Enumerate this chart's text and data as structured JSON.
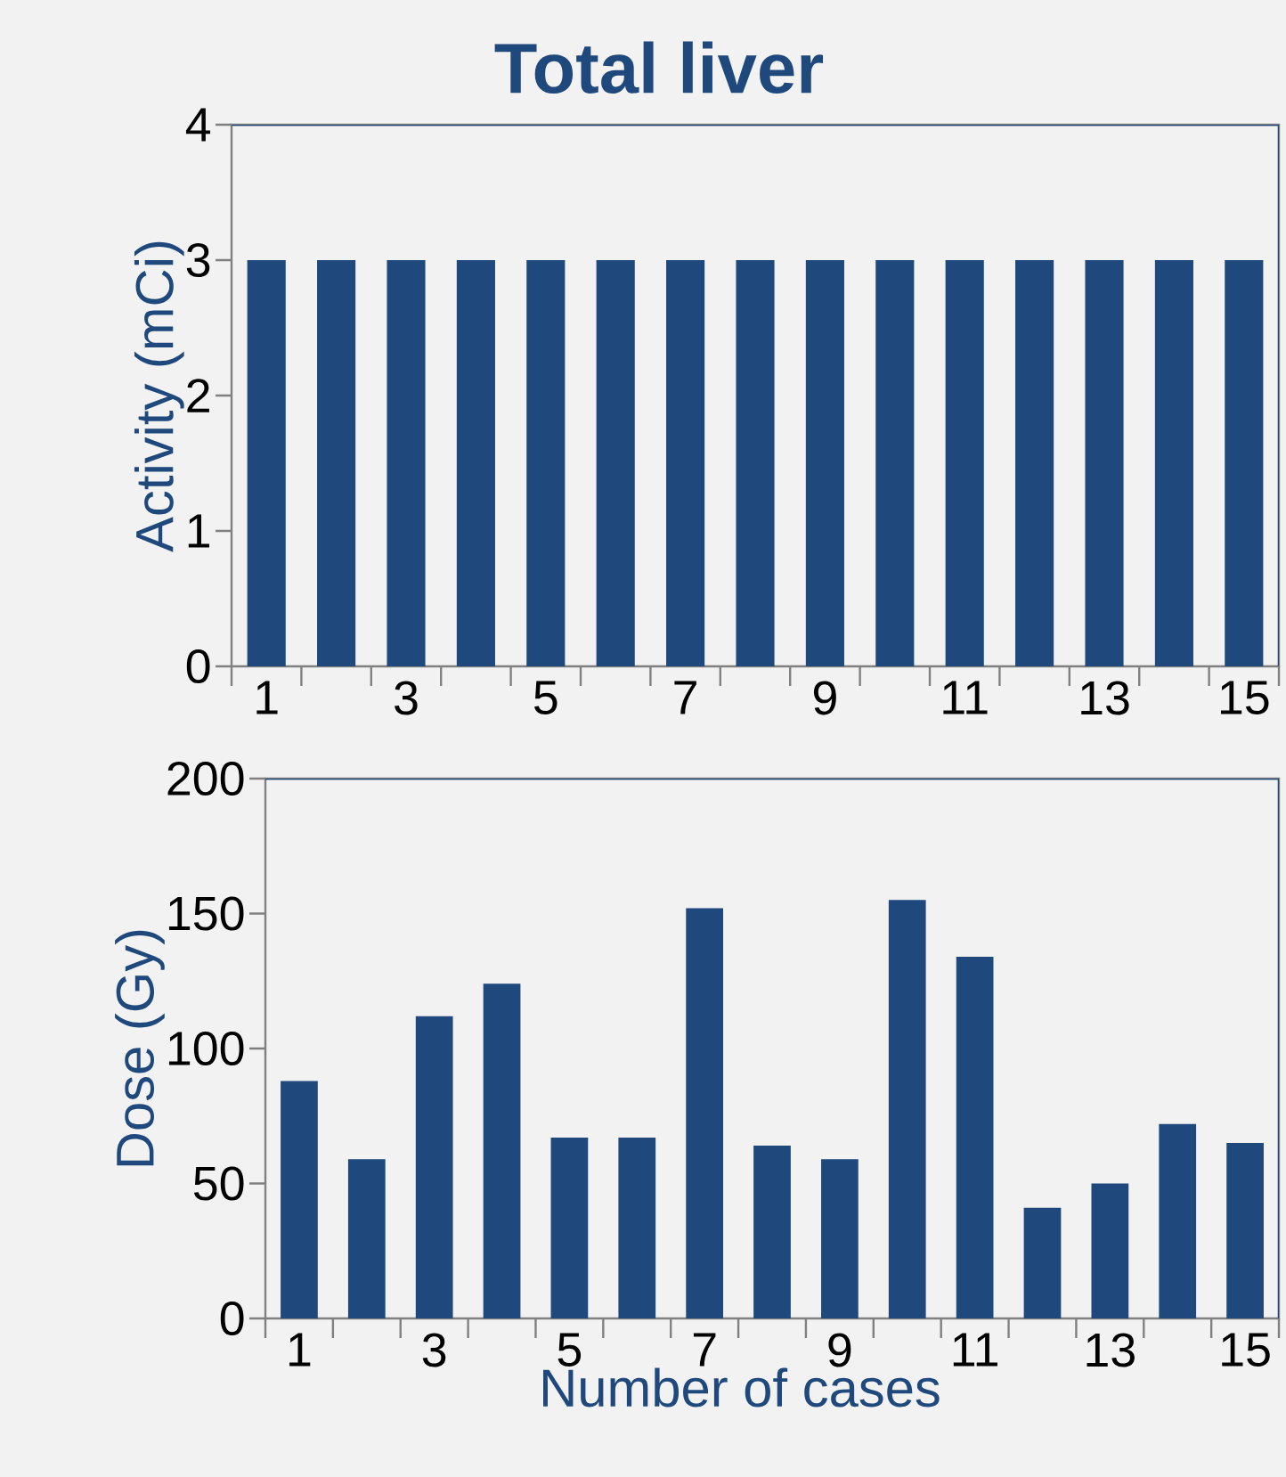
{
  "chart_data": [
    {
      "type": "bar",
      "title": "Total liver",
      "ylabel": "Activity (mCi)",
      "categories": [
        "1",
        null,
        "3",
        null,
        "5",
        null,
        "7",
        null,
        "9",
        null,
        "11",
        null,
        "13",
        null,
        "15"
      ],
      "values": [
        3,
        3,
        3,
        3,
        3,
        3,
        3,
        3,
        3,
        3,
        3,
        3,
        3,
        3,
        3
      ],
      "color": "#1f497d",
      "ylim": [
        0,
        4
      ],
      "yticks": [
        0,
        1,
        2,
        3,
        4
      ]
    },
    {
      "type": "bar",
      "xlabel": "Number of cases",
      "ylabel": "Dose (Gy)",
      "categories": [
        "1",
        null,
        "3",
        null,
        "5",
        null,
        "7",
        null,
        "9",
        null,
        "11",
        null,
        "13",
        null,
        "15"
      ],
      "values": [
        88,
        59,
        112,
        124,
        67,
        67,
        152,
        64,
        59,
        155,
        134,
        41,
        50,
        72,
        65
      ],
      "color": "#1f497d",
      "ylim": [
        0,
        200
      ],
      "yticks": [
        0,
        50,
        100,
        150,
        200
      ]
    }
  ]
}
